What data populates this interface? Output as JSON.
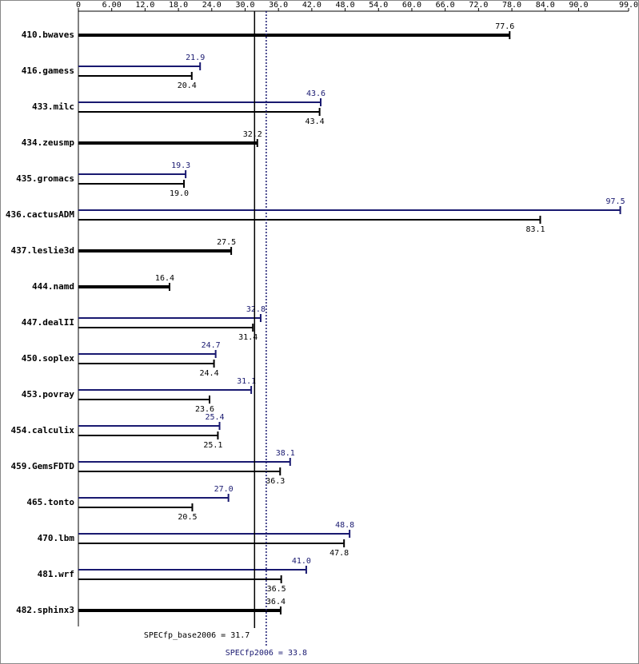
{
  "chart_data": {
    "type": "hbar",
    "categories": [
      "410.bwaves",
      "416.gamess",
      "433.milc",
      "434.zeusmp",
      "435.gromacs",
      "436.cactusADM",
      "437.leslie3d",
      "444.namd",
      "447.dealII",
      "450.soplex",
      "453.povray",
      "454.calculix",
      "459.GemsFDTD",
      "465.tonto",
      "470.lbm",
      "481.wrf",
      "482.sphinx3"
    ],
    "series": [
      {
        "name": "SPECfp2006",
        "color": "#191970",
        "values": [
          null,
          21.9,
          43.6,
          null,
          19.3,
          97.5,
          null,
          null,
          32.8,
          24.7,
          31.1,
          25.4,
          38.1,
          27.0,
          48.8,
          41.0,
          null
        ],
        "value_labels": [
          null,
          "21.9",
          "43.6",
          null,
          "19.3",
          "97.5",
          null,
          null,
          "32.8",
          "24.7",
          "31.1",
          "25.4",
          "38.1",
          "27.0",
          "48.8",
          "41.0",
          null
        ]
      },
      {
        "name": "SPECfp_base2006",
        "color": "#000000",
        "values": [
          77.6,
          20.4,
          43.4,
          32.2,
          19.0,
          83.1,
          27.5,
          16.4,
          31.4,
          24.4,
          23.6,
          25.1,
          36.3,
          20.5,
          47.8,
          36.5,
          36.4
        ],
        "value_labels": [
          "77.6",
          "20.4",
          "43.4",
          "32.2",
          "19.0",
          "83.1",
          "27.5",
          "16.4",
          "31.4",
          "24.4",
          "23.6",
          "25.1",
          "36.3",
          "20.5",
          "47.8",
          "36.5",
          "36.4"
        ]
      }
    ],
    "xlim": [
      0,
      99
    ],
    "xticks": [
      0,
      {
        "value": 6,
        "label": "6.00"
      },
      {
        "value": 12,
        "label": "12.0"
      },
      {
        "value": 18,
        "label": "18.0"
      },
      {
        "value": 24,
        "label": "24.0"
      },
      {
        "value": 30,
        "label": "30.0"
      },
      {
        "value": 36,
        "label": "36.0"
      },
      {
        "value": 42,
        "label": "42.0"
      },
      {
        "value": 48,
        "label": "48.0"
      },
      {
        "value": 54,
        "label": "54.0"
      },
      {
        "value": 60,
        "label": "60.0"
      },
      {
        "value": 66,
        "label": "66.0"
      },
      {
        "value": 72,
        "label": "72.0"
      },
      {
        "value": 78,
        "label": "78.0"
      },
      {
        "value": 84,
        "label": "84.0"
      },
      {
        "value": 90,
        "label": "90.0"
      },
      {
        "value": 99,
        "label": "99.0"
      }
    ],
    "reference_lines": [
      {
        "label": "SPECfp_base2006 = 31.7",
        "value": 31.7,
        "color": "#000000",
        "style": "solid"
      },
      {
        "label": "SPECfp2006 = 33.8",
        "value": 33.8,
        "color": "#191970",
        "style": "dotted"
      }
    ]
  }
}
